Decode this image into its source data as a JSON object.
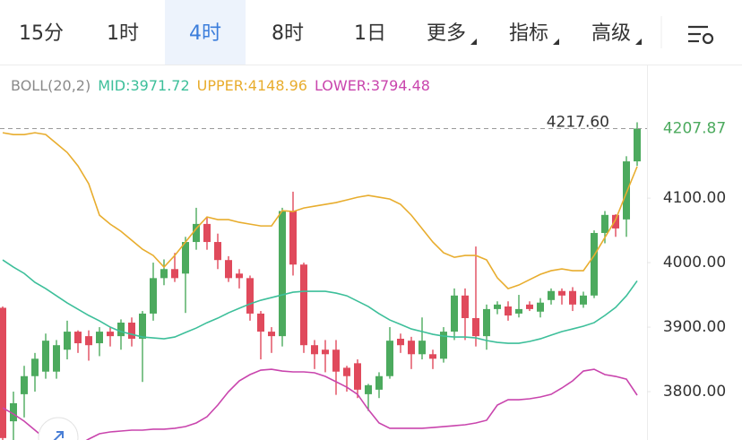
{
  "tabs": {
    "items": [
      "15分",
      "1时",
      "4时",
      "8时",
      "1日",
      "更多",
      "指标",
      "高级"
    ],
    "selected": 2
  },
  "chart_data": {
    "type": "candlestick",
    "indicator": "BOLL(20,2)",
    "ylim": [
      3725,
      4303
    ],
    "yticks": [
      {
        "value": 3800,
        "label": "3800.00"
      },
      {
        "value": 3900,
        "label": "3900.00"
      },
      {
        "value": 4000,
        "label": "4000.00"
      },
      {
        "value": 4100,
        "label": "4100.00"
      }
    ],
    "grid": false,
    "up_color": "#4caa5e",
    "down_color": "#e04a5c",
    "max_label": {
      "value": 4217.6,
      "label": "4217.60"
    },
    "open": [
      3930,
      3754,
      3796,
      3824,
      3831,
      3831,
      3865,
      3893,
      3886,
      3875,
      3893,
      3886,
      3907,
      3882,
      3921,
      3976,
      3990,
      3983,
      4032,
      4060,
      4032,
      4004,
      3983,
      3976,
      3921,
      3893,
      3886,
      4080,
      3997,
      3872,
      3865,
      3865,
      3837,
      3844,
      3796,
      3803,
      3824,
      3882,
      3879,
      3858,
      3858,
      3851,
      3893,
      3949,
      3914,
      3886,
      3928,
      3932,
      3921,
      3935,
      3924,
      3942,
      3956,
      3956,
      3935,
      3949,
      4046,
      4074,
      4067,
      4157
    ],
    "high": [
      3932,
      3800,
      3840,
      3860,
      3890,
      3880,
      3910,
      3895,
      3895,
      3900,
      3900,
      3912,
      3915,
      3925,
      4000,
      4005,
      4015,
      4040,
      4085,
      4070,
      4045,
      4010,
      3990,
      3980,
      3925,
      3900,
      4085,
      4110,
      4000,
      3880,
      3880,
      3880,
      3840,
      3850,
      3812,
      3830,
      3900,
      3890,
      3885,
      3915,
      3865,
      3900,
      3960,
      3960,
      4025,
      3935,
      3940,
      3940,
      3950,
      3940,
      3945,
      3960,
      3960,
      3962,
      3955,
      4050,
      4080,
      4075,
      4165,
      4217.6
    ],
    "low": [
      3720,
      3725,
      3760,
      3800,
      3820,
      3820,
      3850,
      3860,
      3848,
      3855,
      3870,
      3865,
      3870,
      3815,
      3910,
      3965,
      3970,
      3922,
      4020,
      4020,
      3990,
      3970,
      3960,
      3910,
      3850,
      3860,
      3870,
      3980,
      3860,
      3835,
      3830,
      3795,
      3800,
      3790,
      3770,
      3790,
      3820,
      3860,
      3835,
      3850,
      3835,
      3845,
      3880,
      3880,
      3870,
      3865,
      3920,
      3910,
      3915,
      3925,
      3915,
      3935,
      3935,
      3925,
      3930,
      3945,
      4030,
      4040,
      4040,
      4150
    ],
    "close": [
      3728,
      3782,
      3824,
      3851,
      3879,
      3872,
      3893,
      3875,
      3872,
      3893,
      3886,
      3907,
      3882,
      3921,
      3976,
      3990,
      3976,
      4032,
      4060,
      4032,
      4004,
      3976,
      3976,
      3921,
      3893,
      3886,
      4080,
      3997,
      3872,
      3858,
      3858,
      3831,
      3824,
      3803,
      3810,
      3824,
      3879,
      3872,
      3858,
      3879,
      3851,
      3893,
      3949,
      3914,
      3886,
      3928,
      3935,
      3918,
      3928,
      3928,
      3938,
      3956,
      3949,
      3935,
      3949,
      4046,
      4074,
      4053,
      4157,
      4207.87
    ],
    "series": [
      {
        "name": "MID:3971.72",
        "color": "#3dbf9a",
        "values": [
          4004.2,
          3993.1,
          3983.3,
          3969.4,
          3959.7,
          3948.6,
          3937.5,
          3927.8,
          3918.1,
          3909.7,
          3900,
          3893.1,
          3888.9,
          3884.7,
          3883.3,
          3881.9,
          3884.7,
          3891.7,
          3898.6,
          3906.9,
          3913.9,
          3922.2,
          3929.2,
          3936.1,
          3941.7,
          3945.8,
          3950,
          3954.2,
          3955.6,
          3955.6,
          3955.6,
          3952.8,
          3948.6,
          3940.3,
          3931.9,
          3920.8,
          3911.1,
          3904.2,
          3897.2,
          3893.1,
          3888.9,
          3886.1,
          3884.7,
          3884.7,
          3883.3,
          3879.2,
          3876.4,
          3875,
          3875,
          3877.8,
          3881.9,
          3887.5,
          3893.1,
          3897.2,
          3901.4,
          3906.9,
          3918.1,
          3930.6,
          3948.6,
          3971.72
        ]
      },
      {
        "name": "UPPER:4148.96",
        "color": "#e8ad2e",
        "values": [
          4201.4,
          4198.6,
          4198.6,
          4201.4,
          4198.6,
          4184.7,
          4170.8,
          4150,
          4122.2,
          4073.6,
          4059.7,
          4048.6,
          4034.7,
          4020.8,
          4011.1,
          3993.1,
          4011.1,
          4031.9,
          4052.8,
          4070.8,
          4066.7,
          4066.7,
          4062.5,
          4059.7,
          4056.9,
          4056.9,
          4080.6,
          4079.2,
          4084.7,
          4087.5,
          4090.3,
          4093.1,
          4097.2,
          4101.4,
          4104.2,
          4101.4,
          4098.6,
          4090.3,
          4073.6,
          4052.8,
          4031.9,
          4015.3,
          4008.3,
          4011.1,
          4011.1,
          4004.2,
          3976.4,
          3959.7,
          3965.3,
          3973.6,
          3981.9,
          3987.5,
          3990.3,
          3987.5,
          3987.5,
          4011.1,
          4038.9,
          4066.7,
          4108.3,
          4148.96
        ]
      },
      {
        "name": "LOWER:3794.48",
        "color": "#c945ad",
        "values": [
          3775,
          3765.3,
          3754.2,
          3740.3,
          3726.4,
          3718.1,
          3715.3,
          3716.7,
          3726.4,
          3734.7,
          3737.5,
          3738.9,
          3740.3,
          3740.3,
          3741.7,
          3741.7,
          3743.1,
          3745.8,
          3751.4,
          3761.1,
          3779.2,
          3800,
          3816.7,
          3826.4,
          3833.3,
          3834.7,
          3831.9,
          3830.6,
          3830.6,
          3829.2,
          3823.6,
          3815.3,
          3806.9,
          3795.8,
          3772.2,
          3751.4,
          3743.1,
          3743.1,
          3743.1,
          3743.1,
          3744.4,
          3745.8,
          3747.2,
          3748.6,
          3751.4,
          3755.6,
          3779.2,
          3787.5,
          3787.5,
          3788.9,
          3791.7,
          3795.8,
          3805.6,
          3816.7,
          3831.9,
          3834.7,
          3826.4,
          3823.6,
          3819.4,
          3794.48
        ]
      }
    ]
  }
}
